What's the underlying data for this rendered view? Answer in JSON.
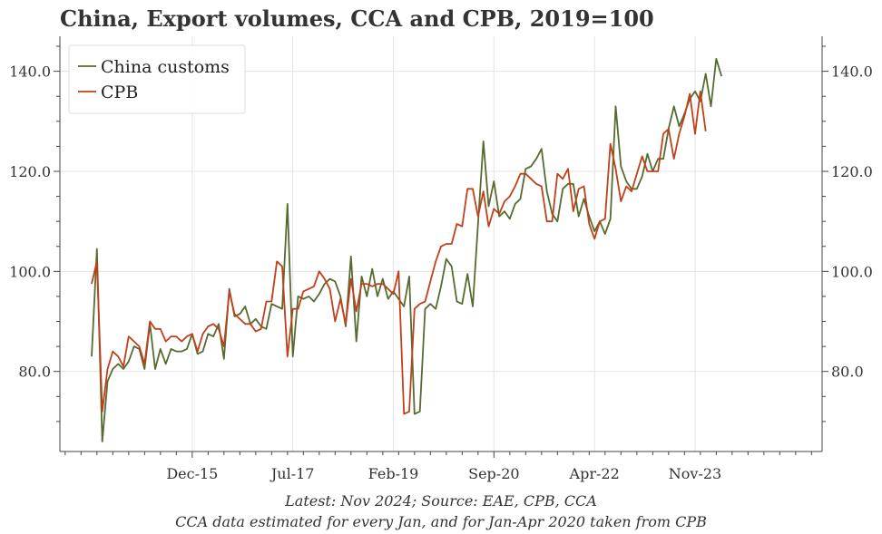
{
  "chart_data": {
    "type": "line",
    "title": "China, Export volumes, CCA and CPB, 2019=100",
    "footnotes": [
      "Latest: Nov 2024; Source: EAE, CPB, CCA",
      "CCA data estimated for every Jan, and for Jan-Apr 2020 taken from CPB"
    ],
    "x_tick_labels": [
      "Dec-15",
      "Jul-17",
      "Feb-19",
      "Sep-20",
      "Apr-22",
      "Nov-23"
    ],
    "y_tick_labels": [
      "80.0",
      "100.0",
      "120.0",
      "140.0"
    ],
    "y_ticks": [
      80,
      100,
      120,
      140
    ],
    "ylim": [
      64,
      147
    ],
    "grid": true,
    "legend_placement": "top-left",
    "xlabel": "",
    "ylabel": "",
    "series": [
      {
        "name": "China customs",
        "color": "#556b2f",
        "start": [
          2014,
          5
        ],
        "values": [
          83,
          104.5,
          66,
          78,
          80.5,
          81.5,
          80.5,
          82,
          85,
          84.5,
          80.5,
          89.5,
          80.5,
          84.5,
          81.5,
          84.5,
          84,
          84,
          84.5,
          87.5,
          83.5,
          84,
          87.5,
          87,
          89.5,
          82.5,
          96.5,
          91,
          91.5,
          93,
          89.5,
          90.5,
          89,
          88.5,
          93.5,
          93,
          92.5,
          113.5,
          83,
          95,
          94.5,
          95,
          94,
          95.5,
          97.5,
          98.5,
          98,
          95,
          89,
          103,
          86,
          99,
          95,
          100.5,
          95,
          98.5,
          94.5,
          96,
          94.5,
          93,
          99,
          71.5,
          72,
          92.5,
          93.5,
          92.5,
          97,
          102.5,
          101,
          94,
          93.5,
          99.5,
          93,
          109.5,
          126,
          113,
          118,
          111,
          112,
          110.5,
          113.5,
          114.5,
          120.5,
          121,
          122.5,
          124.5,
          116,
          111.5,
          110,
          116.5,
          117.5,
          117.5,
          111,
          114.5,
          111,
          108,
          110,
          107.5,
          110.5,
          133,
          121,
          118,
          116.5,
          116.5,
          119,
          123.5,
          120,
          122.5,
          122.5,
          128.5,
          133,
          129,
          131.5,
          134.5,
          136,
          134,
          139.5,
          133,
          142.5,
          139
        ]
      },
      {
        "name": "CPB",
        "color": "#c0401a",
        "start": [
          2014,
          5
        ],
        "values": [
          97.5,
          102,
          72,
          80.5,
          84,
          83,
          81,
          87,
          86,
          85,
          81.5,
          90,
          88.5,
          88.5,
          86,
          87,
          87,
          86,
          87,
          87.5,
          84,
          87.5,
          89,
          89.5,
          88.5,
          85,
          96,
          91.5,
          90.5,
          89.5,
          89.5,
          88,
          88.5,
          94,
          94,
          102,
          101,
          83,
          92.5,
          92.5,
          96,
          96.5,
          97,
          100,
          98.5,
          96.5,
          90,
          94.5,
          89.5,
          98.5,
          92,
          97.5,
          97.5,
          97,
          97.5,
          97.5,
          96.5,
          95.5,
          100,
          71.5,
          72,
          92.5,
          93.5,
          94,
          98,
          102,
          105,
          105.5,
          105.5,
          109.5,
          109,
          116.5,
          116.5,
          111,
          116,
          109,
          112.5,
          111.5,
          114,
          115,
          117,
          119.5,
          119.5,
          118.5,
          117.5,
          117,
          110,
          110,
          119.5,
          118.5,
          120.5,
          112,
          116.5,
          117,
          109.5,
          106.5,
          110,
          110.5,
          125.5,
          120.5,
          114,
          117,
          116,
          119.5,
          123,
          120,
          120,
          120,
          127.5,
          128.5,
          122.5,
          127.5,
          131,
          135.5,
          127.5,
          136,
          128
        ]
      }
    ]
  }
}
